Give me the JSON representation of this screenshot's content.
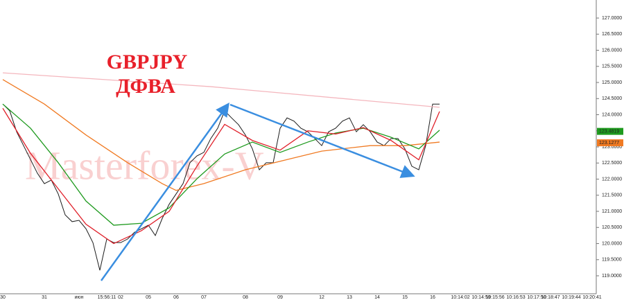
{
  "chart_data": {
    "type": "line",
    "title": "GBPJPY",
    "subtitle": "ДФВА",
    "watermark": "Masterforex-V",
    "categories": [
      "30",
      null,
      null,
      null,
      null,
      null,
      "31",
      null,
      null,
      null,
      null,
      "июн",
      null,
      null,
      null,
      "15:56:11",
      null,
      "02",
      null,
      null,
      null,
      "05",
      null,
      null,
      null,
      "06",
      null,
      null,
      null,
      "07",
      null,
      null,
      null,
      null,
      null,
      "08",
      null,
      null,
      null,
      null,
      "09",
      null,
      null,
      null,
      null,
      null,
      "12",
      null,
      null,
      null,
      "13",
      null,
      null,
      null,
      "14",
      null,
      null,
      null,
      "15",
      null,
      null,
      null,
      "16",
      null,
      null,
      null,
      "10:14:02",
      null,
      null,
      "10:14:59",
      null,
      "10:15:56",
      null,
      null,
      "10:16:53",
      null,
      null,
      "10:17:50",
      null,
      "10:18:47",
      null,
      null,
      "10:19:44",
      null,
      null,
      "10:20:41",
      null
    ],
    "series": [
      {
        "name": "GBPJPY",
        "color": "#1a1a1a",
        "values": [
          124.33,
          124.12,
          123.47,
          123.04,
          122.61,
          122.18,
          121.86,
          121.97,
          121.54,
          120.89,
          120.68,
          120.72,
          120.46,
          120.03,
          119.17,
          120.14,
          120.03,
          120.03,
          120.14,
          120.35,
          120.46,
          120.57,
          120.25,
          120.78,
          121.22,
          121.54,
          121.86,
          122.51,
          122.72,
          122.83,
          123.26,
          123.58,
          124.12,
          123.9,
          123.69,
          123.37,
          122.94,
          122.29,
          122.51,
          122.51,
          123.58,
          123.9,
          123.8,
          123.58,
          123.47,
          123.26,
          123.04,
          123.47,
          123.58,
          123.8,
          123.9,
          123.47,
          123.69,
          123.47,
          123.15,
          123.04,
          123.26,
          123.26,
          122.94,
          122.4,
          122.29,
          123.04,
          124.33,
          124.33,
          null,
          null,
          null,
          null,
          null,
          null,
          null,
          null,
          null,
          null,
          null,
          null,
          null,
          null,
          null,
          null,
          null,
          null,
          null,
          null,
          null,
          null,
          null
        ]
      },
      {
        "color": "#f4b6bd",
        "x": [
          0,
          30,
          63
        ],
        "values": [
          125.3,
          124.87,
          124.23
        ]
      },
      {
        "color": "#f07a22",
        "x": [
          0,
          6,
          12,
          18,
          23,
          25,
          29,
          35,
          42,
          46,
          53,
          58,
          63
        ],
        "values": [
          125.09,
          124.33,
          123.37,
          122.51,
          121.86,
          121.65,
          121.86,
          122.29,
          122.66,
          122.87,
          123.04,
          123.04,
          123.15
        ]
      },
      {
        "color": "#1e9a1e",
        "x": [
          0,
          4,
          8,
          12,
          16,
          20,
          24,
          28,
          32,
          36,
          40,
          44,
          48,
          52,
          56,
          60,
          63
        ],
        "values": [
          124.33,
          123.58,
          122.51,
          121.32,
          120.57,
          120.63,
          121.11,
          122.01,
          122.78,
          123.15,
          122.83,
          123.15,
          123.43,
          123.58,
          123.3,
          122.94,
          123.52
        ]
      },
      {
        "color": "#e0202a",
        "x": [
          0,
          4,
          8,
          12,
          16,
          20,
          24,
          28,
          32,
          36,
          40,
          44,
          48,
          52,
          56,
          60,
          63
        ],
        "values": [
          124.2,
          122.8,
          121.7,
          120.6,
          120.0,
          120.4,
          121.0,
          122.4,
          123.7,
          123.2,
          122.9,
          123.5,
          123.4,
          123.6,
          123.2,
          122.6,
          124.1
        ]
      }
    ],
    "price_tags": [
      {
        "value": 123.4819,
        "label": "123.4819",
        "color": "#1e9a1e"
      },
      {
        "value": 123.1277,
        "label": "123.1277",
        "color": "#f07a22"
      }
    ],
    "ylim": [
      118.42,
      127.56
    ],
    "yticks": [
      {
        "value": 119,
        "label": "119.0000"
      },
      {
        "value": 119.5,
        "label": "119.5000"
      },
      {
        "value": 120,
        "label": "120.0000"
      },
      {
        "value": 120.5,
        "label": "120.5000"
      },
      {
        "value": 121,
        "label": "121.0000"
      },
      {
        "value": 121.5,
        "label": "121.5000"
      },
      {
        "value": 122,
        "label": "122.0000"
      },
      {
        "value": 122.5,
        "label": "122.5000"
      },
      {
        "value": 123,
        "label": "123.0000"
      },
      {
        "value": 123.5,
        "label": "123.5000"
      },
      {
        "value": 124,
        "label": "124.0000"
      },
      {
        "value": 124.5,
        "label": "124.5000"
      },
      {
        "value": 125,
        "label": "125.0000"
      },
      {
        "value": 125.5,
        "label": "125.5000"
      },
      {
        "value": 126,
        "label": "126.0000"
      },
      {
        "value": 126.5,
        "label": "126.5000"
      },
      {
        "value": 127,
        "label": "127.0000"
      }
    ]
  }
}
